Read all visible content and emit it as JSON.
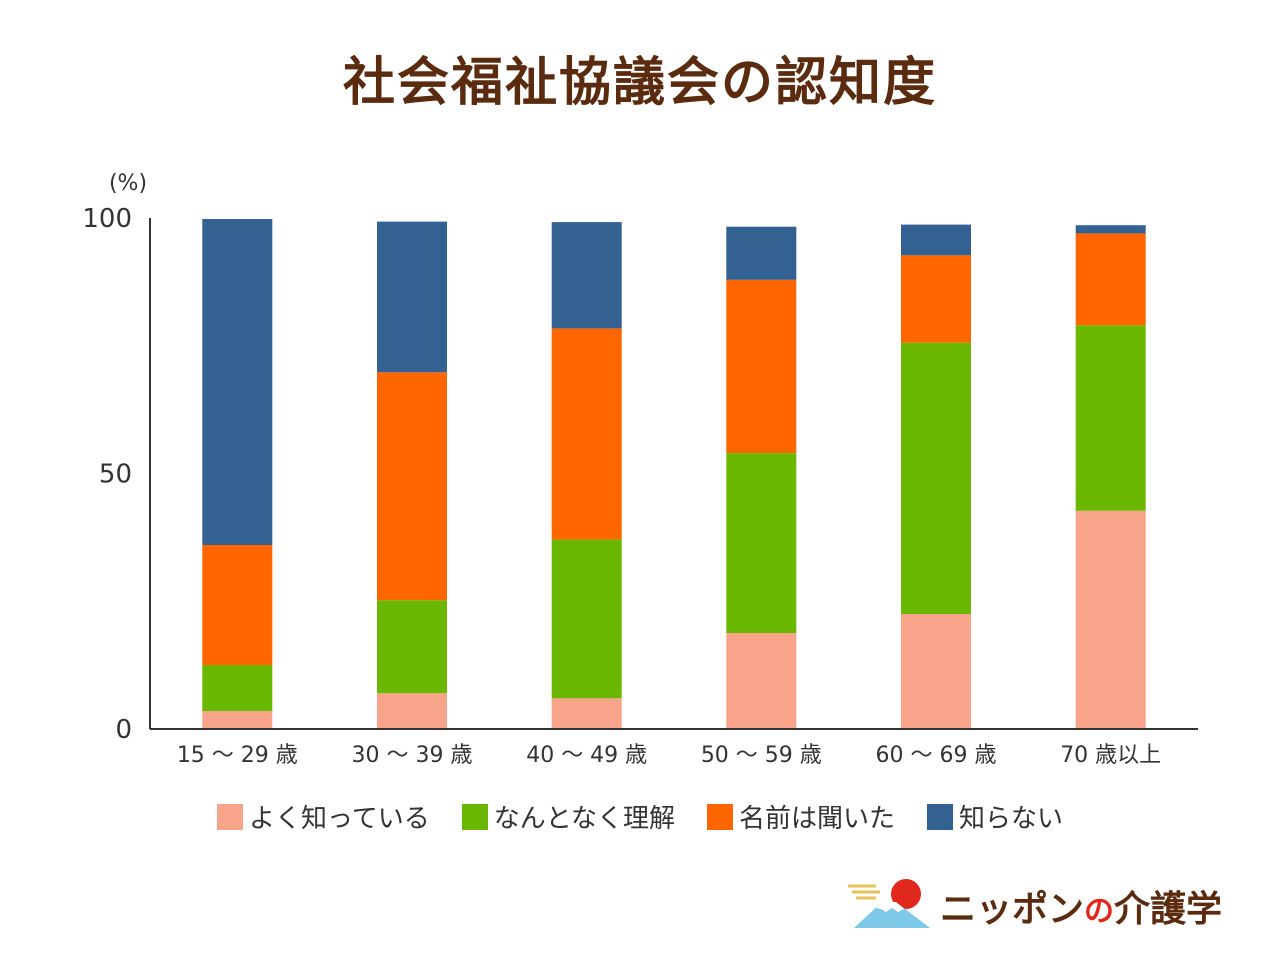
{
  "chart_data": {
    "type": "bar",
    "stacked": true,
    "title": "社会福祉協議会の認知度",
    "unit_label": "(%)",
    "ylim": [
      0,
      100
    ],
    "yticks": [
      "0",
      "50",
      "100"
    ],
    "categories": [
      "15 ～ 29 歳",
      "30 ～ 39 歳",
      "40 ～ 49 歳",
      "50 ～ 59 歳",
      "60 ～ 69 歳",
      "70 歳以上"
    ],
    "series": [
      {
        "name": "よく知っている",
        "color": "#f7a48a",
        "values": [
          3.5,
          7.0,
          6.0,
          18.8,
          22.5,
          42.7
        ]
      },
      {
        "name": "なんとなく理解",
        "color": "#6ab700",
        "values": [
          9.0,
          18.2,
          31.1,
          35.2,
          53.1,
          36.3
        ]
      },
      {
        "name": "名前は聞いた",
        "color": "#ff6600",
        "values": [
          23.5,
          44.6,
          41.3,
          33.9,
          17.1,
          18.0
        ]
      },
      {
        "name": "知らない",
        "color": "#336192",
        "values": [
          63.8,
          29.5,
          20.8,
          10.4,
          6.0,
          1.6
        ]
      }
    ],
    "legend_position": "bottom",
    "grid": false
  },
  "brand": {
    "name_part1": "ニッポン",
    "name_part2": "の",
    "name_part3": "介護学",
    "logo_icon": "mount-fuji-sun-logo"
  }
}
